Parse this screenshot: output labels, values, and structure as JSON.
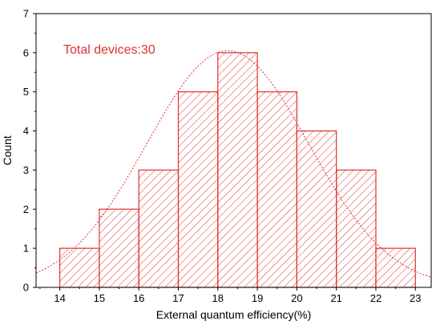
{
  "chart_data": {
    "type": "bar",
    "title": "",
    "xlabel": "External quantum efficiency(%)",
    "ylabel": "Count",
    "bins": [
      {
        "start": 14,
        "end": 15,
        "count": 1
      },
      {
        "start": 15,
        "end": 16,
        "count": 2
      },
      {
        "start": 16,
        "end": 17,
        "count": 3
      },
      {
        "start": 17,
        "end": 18,
        "count": 5
      },
      {
        "start": 18,
        "end": 19,
        "count": 6
      },
      {
        "start": 19,
        "end": 20,
        "count": 5
      },
      {
        "start": 20,
        "end": 21,
        "count": 4
      },
      {
        "start": 21,
        "end": 22,
        "count": 3
      },
      {
        "start": 22,
        "end": 23,
        "count": 1
      }
    ],
    "xlim": [
      13.4,
      23.4
    ],
    "ylim": [
      0,
      7
    ],
    "xticks": [
      14,
      15,
      16,
      17,
      18,
      19,
      20,
      21,
      22,
      23
    ],
    "yticks": [
      0,
      1,
      2,
      3,
      4,
      5,
      6,
      7
    ],
    "fit_curve": {
      "type": "gaussian",
      "mean": 18.25,
      "sigma": 2.05,
      "peak": 6.05
    },
    "annotation": "Total devices:30",
    "bar_color": "#e03030",
    "curve_color": "#e03030",
    "annotation_color": "#e03030",
    "bar_fill": "diagonal-hatch"
  }
}
